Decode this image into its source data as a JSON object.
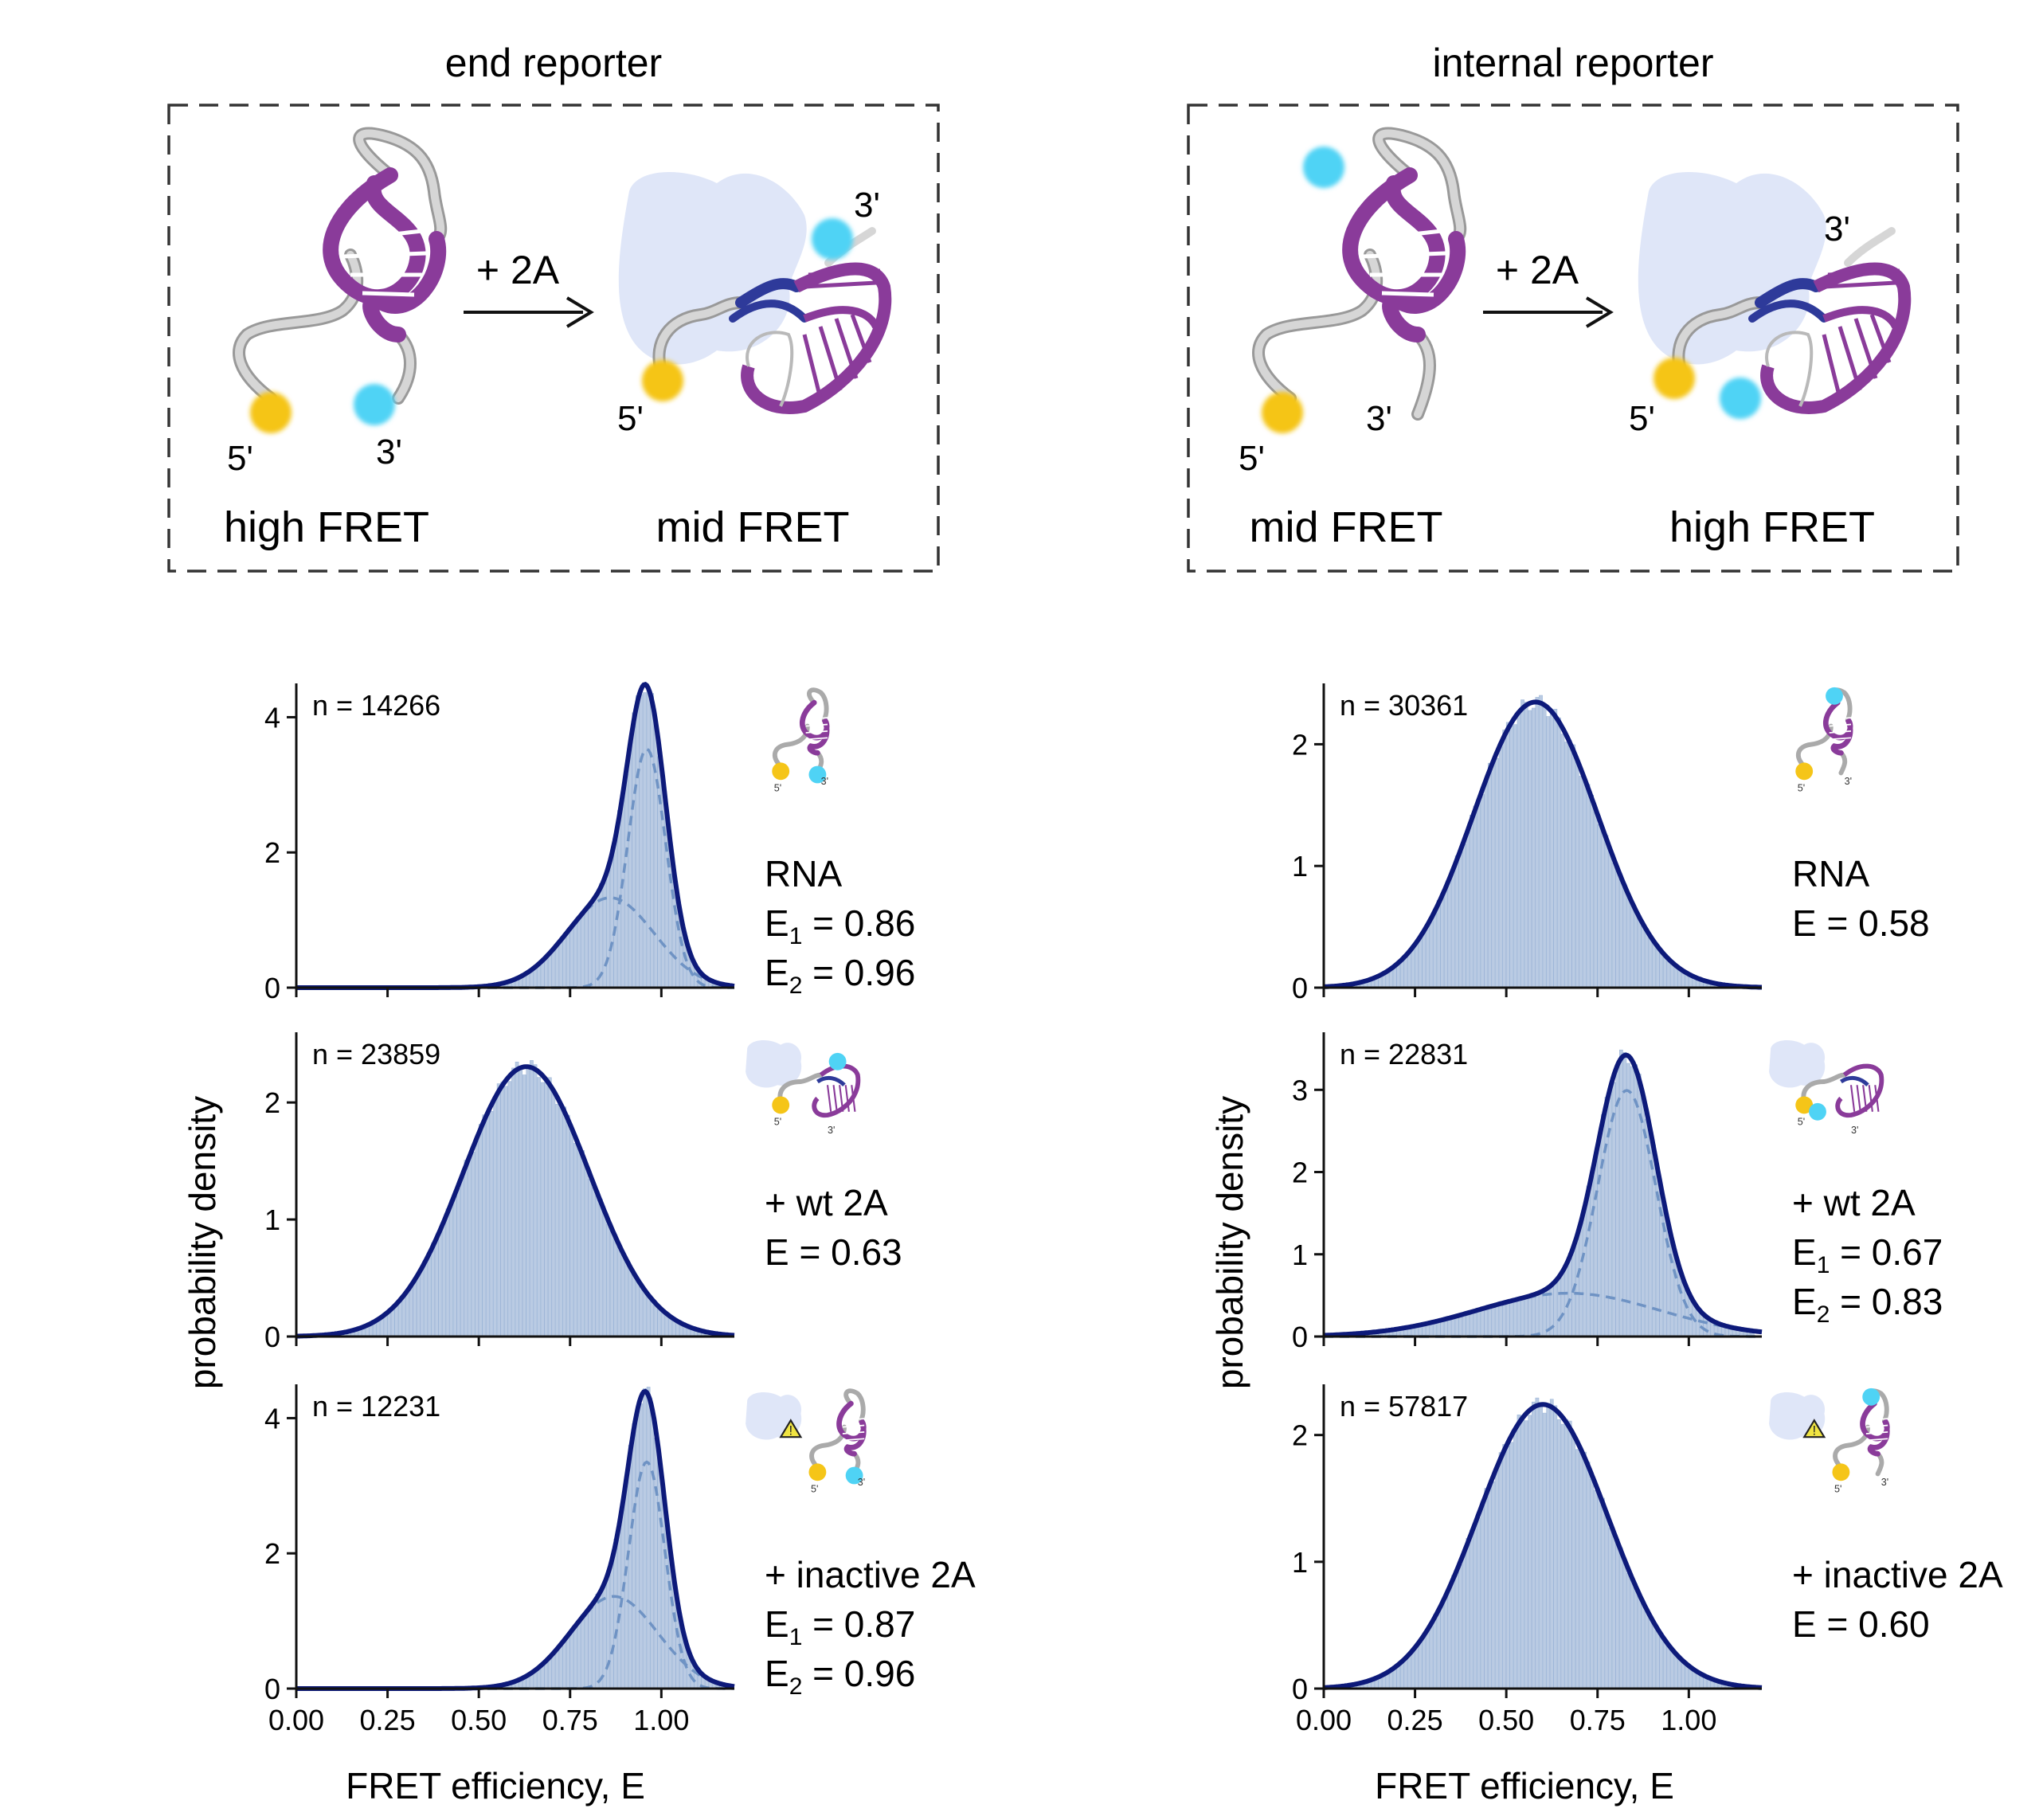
{
  "colors": {
    "curve": "#0d1a7a",
    "component": "#6f93c4",
    "bars": "#bacbe3",
    "bar_edge": "#98b2d6",
    "donor": "#f5c518",
    "acceptor": "#4fd3f5",
    "rna": "#8a3b9a",
    "rna_light": "#b58cc4",
    "duplex_blue": "#2e3a9a",
    "protein": "#dfe6f8",
    "linker": "#b9b9b9"
  },
  "schematics": {
    "end": {
      "title": "end reporter",
      "arrow_label": "+ 2A",
      "left_label": "high FRET",
      "right_label": "mid FRET",
      "left_5p": "5'",
      "left_3p": "3'",
      "right_5p": "5'",
      "right_3p": "3'"
    },
    "internal": {
      "title": "internal reporter",
      "arrow_label": "+ 2A",
      "left_label": "mid FRET",
      "right_label": "high FRET",
      "left_5p": "5'",
      "left_3p": "3'",
      "right_5p": "5'",
      "right_3p": "3'"
    }
  },
  "axes_text": {
    "xlabel": "FRET efficiency, E",
    "ylabel": "probability density",
    "x_ticks": [
      "0.00",
      "0.25",
      "0.50",
      "0.75",
      "1.00"
    ]
  },
  "thumb_labels": {
    "five": "5'",
    "three": "3'"
  },
  "chart_data": [
    {
      "type": "histogram",
      "column": "end reporter",
      "condition": "RNA",
      "n_label": "n = 14266",
      "annotation": [
        "RNA",
        "E1 = 0.86",
        "E2 = 0.96"
      ],
      "xlim": [
        0,
        1.2
      ],
      "ylim": [
        0,
        4.5
      ],
      "yticks": [
        "0",
        "2",
        "4"
      ],
      "ytick_values": [
        0,
        2,
        4
      ],
      "components": [
        {
          "mean": 0.86,
          "sd": 0.12,
          "weight": 0.4
        },
        {
          "mean": 0.96,
          "sd": 0.052,
          "weight": 0.46
        }
      ],
      "icon": "rna"
    },
    {
      "type": "histogram",
      "column": "end reporter",
      "condition": "+ wt 2A",
      "n_label": "n = 23859",
      "annotation": [
        "+ wt 2A",
        "E = 0.63"
      ],
      "xlim": [
        0,
        1.2
      ],
      "ylim": [
        0,
        2.6
      ],
      "yticks": [
        "0",
        "1",
        "2"
      ],
      "ytick_values": [
        0,
        1,
        2
      ],
      "components": [
        {
          "mean": 0.63,
          "sd": 0.173,
          "weight": 1.0
        }
      ],
      "icon": "bound"
    },
    {
      "type": "histogram",
      "column": "end reporter",
      "condition": "+ inactive 2A",
      "n_label": "n = 12231",
      "annotation": [
        "+ inactive 2A",
        "E1 = 0.87",
        "E2 = 0.96"
      ],
      "xlim": [
        0,
        1.2
      ],
      "ylim": [
        0,
        4.5
      ],
      "yticks": [
        "0",
        "2",
        "4"
      ],
      "ytick_values": [
        0,
        2,
        4
      ],
      "components": [
        {
          "mean": 0.87,
          "sd": 0.12,
          "weight": 0.41
        },
        {
          "mean": 0.96,
          "sd": 0.05,
          "weight": 0.42
        }
      ],
      "icon": "inactive"
    },
    {
      "type": "histogram",
      "column": "internal reporter",
      "condition": "RNA",
      "n_label": "n = 30361",
      "annotation": [
        "RNA",
        "E = 0.58"
      ],
      "xlim": [
        0,
        1.2
      ],
      "ylim": [
        0,
        2.5
      ],
      "yticks": [
        "0",
        "1",
        "2"
      ],
      "ytick_values": [
        0,
        1,
        2
      ],
      "components": [
        {
          "mean": 0.58,
          "sd": 0.17,
          "weight": 1.0
        }
      ],
      "icon": "rna_internal"
    },
    {
      "type": "histogram",
      "column": "internal reporter",
      "condition": "+ wt 2A",
      "n_label": "n = 22831",
      "annotation": [
        "+ wt 2A",
        "E1 = 0.67",
        "E2 = 0.83"
      ],
      "xlim": [
        0,
        1.2
      ],
      "ylim": [
        0,
        3.7
      ],
      "yticks": [
        "0",
        "1",
        "2",
        "3"
      ],
      "ytick_values": [
        0,
        1,
        2,
        3
      ],
      "components": [
        {
          "mean": 0.67,
          "sd": 0.25,
          "weight": 0.33
        },
        {
          "mean": 0.83,
          "sd": 0.08,
          "weight": 0.6
        }
      ],
      "icon": "bound_internal"
    },
    {
      "type": "histogram",
      "column": "internal reporter",
      "condition": "+ inactive 2A",
      "n_label": "n = 57817",
      "annotation": [
        "+ inactive 2A",
        "E = 0.60"
      ],
      "xlim": [
        0,
        1.2
      ],
      "ylim": [
        0,
        2.4
      ],
      "yticks": [
        "0",
        "1",
        "2"
      ],
      "ytick_values": [
        0,
        1,
        2
      ],
      "components": [
        {
          "mean": 0.6,
          "sd": 0.178,
          "weight": 1.0
        }
      ],
      "icon": "inactive_internal"
    }
  ]
}
